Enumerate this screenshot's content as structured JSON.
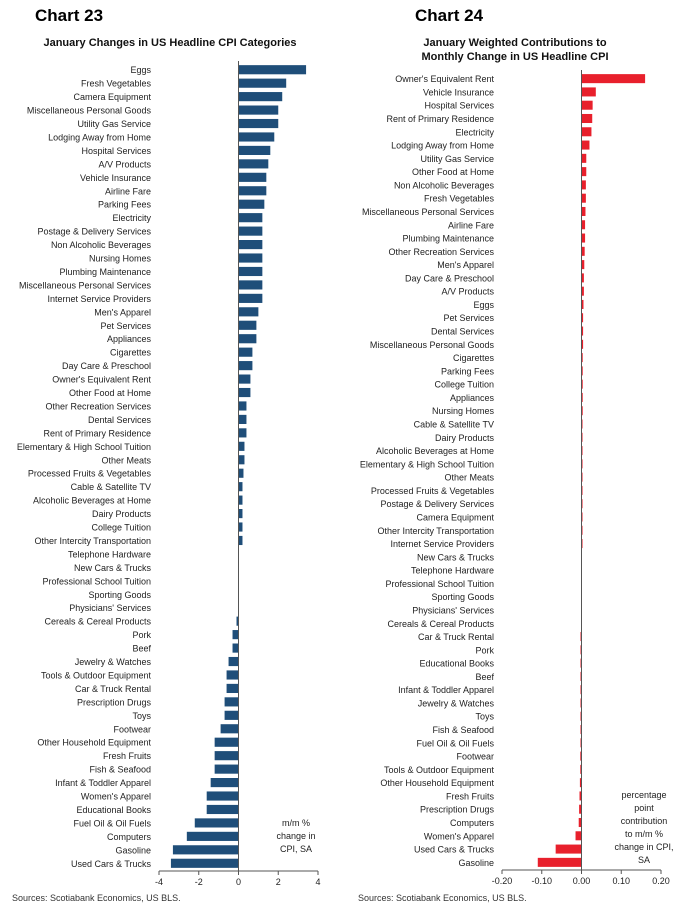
{
  "left": {
    "chart_number": "Chart 23",
    "title": "January Changes in US Headline CPI Categories",
    "source": "Sources: Scotiabank Economics, US BLS.",
    "annotation": [
      "m/m %",
      "change in",
      "CPI, SA"
    ],
    "color": "#1f4e79"
  },
  "right": {
    "chart_number": "Chart 24",
    "title_lines": [
      "January Weighted Contributions to",
      "Monthly Change in US Headline CPI"
    ],
    "source": "Sources: Scotiabank Economics, US BLS.",
    "annotation": [
      "percentage",
      "point",
      "contribution",
      "to m/m %",
      "change in CPI,",
      "SA"
    ],
    "color": "#e8202c"
  },
  "chart_data": [
    {
      "type": "bar",
      "orientation": "horizontal",
      "title": "January Changes in US Headline CPI Categories",
      "xlim": [
        -4,
        4
      ],
      "xticks": [
        "-4",
        "-2",
        "0",
        "2",
        "4"
      ],
      "categories": [
        "Eggs",
        "Fresh Vegetables",
        "Camera Equipment",
        "Miscellaneous Personal Goods",
        "Utility Gas Service",
        "Lodging Away from Home",
        "Hospital Services",
        "A/V Products",
        "Vehicle Insurance",
        "Airline Fare",
        "Parking Fees",
        "Electricity",
        "Postage & Delivery Services",
        "Non Alcoholic Beverages",
        "Nursing Homes",
        "Plumbing Maintenance",
        "Miscellaneous Personal Services",
        "Internet Service Providers",
        "Men's Apparel",
        "Pet Services",
        "Appliances",
        "Cigarettes",
        "Day Care & Preschool",
        "Owner's Equivalent Rent",
        "Other Food at Home",
        "Other Recreation Services",
        "Dental Services",
        "Rent of Primary Residence",
        "Elementary & High School Tuition",
        "Other Meats",
        "Processed Fruits & Vegetables",
        "Cable & Satellite TV",
        "Alcoholic Beverages at Home",
        "Dairy Products",
        "College Tuition",
        "Other Intercity Transportation",
        "Telephone Hardware",
        "New Cars & Trucks",
        "Professional School Tuition",
        "Sporting Goods",
        "Physicians' Services",
        "Cereals & Cereal Products",
        "Pork",
        "Beef",
        "Jewelry & Watches",
        "Tools & Outdoor Equipment",
        "Car & Truck Rental",
        "Prescription Drugs",
        "Toys",
        "Footwear",
        "Other Household Equipment",
        "Fresh Fruits",
        "Fish & Seafood",
        "Infant & Toddler Apparel",
        "Women's Apparel",
        "Educational Books",
        "Fuel Oil & Oil Fuels",
        "Computers",
        "Gasoline",
        "Used Cars & Trucks"
      ],
      "values": [
        3.4,
        2.4,
        2.2,
        2.0,
        2.0,
        1.8,
        1.6,
        1.5,
        1.4,
        1.4,
        1.3,
        1.2,
        1.2,
        1.2,
        1.2,
        1.2,
        1.2,
        1.2,
        1.0,
        0.9,
        0.9,
        0.7,
        0.7,
        0.6,
        0.6,
        0.4,
        0.4,
        0.4,
        0.3,
        0.3,
        0.25,
        0.2,
        0.2,
        0.2,
        0.2,
        0.2,
        0.0,
        0.0,
        0.0,
        0.0,
        0.0,
        -0.1,
        -0.3,
        -0.3,
        -0.5,
        -0.6,
        -0.6,
        -0.7,
        -0.7,
        -0.9,
        -1.2,
        -1.2,
        -1.2,
        -1.4,
        -1.6,
        -1.6,
        -2.2,
        -2.6,
        -3.3,
        -3.4
      ]
    },
    {
      "type": "bar",
      "orientation": "horizontal",
      "title": "January Weighted Contributions to Monthly Change in US Headline CPI",
      "xlim": [
        -0.2,
        0.2
      ],
      "xticks": [
        "-0.20",
        "-0.10",
        "0.00",
        "0.10",
        "0.20"
      ],
      "categories": [
        "Owner's Equivalent Rent",
        "Vehicle Insurance",
        "Hospital Services",
        "Rent of Primary Residence",
        "Electricity",
        "Lodging Away from Home",
        "Utility Gas Service",
        "Other Food at Home",
        "Non Alcoholic Beverages",
        "Fresh Vegetables",
        "Miscellaneous Personal Services",
        "Airline Fare",
        "Plumbing Maintenance",
        "Other Recreation Services",
        "Men's Apparel",
        "Day Care & Preschool",
        "A/V Products",
        "Eggs",
        "Pet Services",
        "Dental Services",
        "Miscellaneous Personal Goods",
        "Cigarettes",
        "Parking Fees",
        "College Tuition",
        "Appliances",
        "Nursing Homes",
        "Cable & Satellite TV",
        "Dairy Products",
        "Alcoholic Beverages at Home",
        "Elementary & High School Tuition",
        "Other Meats",
        "Processed Fruits & Vegetables",
        "Postage & Delivery Services",
        "Camera Equipment",
        "Other Intercity Transportation",
        "Internet Service Providers",
        "New Cars & Trucks",
        "Telephone Hardware",
        "Professional School Tuition",
        "Sporting Goods",
        "Physicians' Services",
        "Cereals & Cereal Products",
        "Car & Truck Rental",
        "Pork",
        "Educational Books",
        "Beef",
        "Infant & Toddler Apparel",
        "Jewelry & Watches",
        "Toys",
        "Fish & Seafood",
        "Fuel Oil & Oil Fuels",
        "Footwear",
        "Tools & Outdoor Equipment",
        "Other Household Equipment",
        "Fresh Fruits",
        "Prescription Drugs",
        "Computers",
        "Women's Apparel",
        "Used Cars & Trucks",
        "Gasoline"
      ],
      "values": [
        0.16,
        0.036,
        0.028,
        0.027,
        0.025,
        0.02,
        0.012,
        0.012,
        0.011,
        0.011,
        0.01,
        0.009,
        0.009,
        0.008,
        0.007,
        0.006,
        0.006,
        0.005,
        0.004,
        0.004,
        0.004,
        0.003,
        0.003,
        0.003,
        0.003,
        0.003,
        0.002,
        0.002,
        0.002,
        0.002,
        0.002,
        0.002,
        0.001,
        0.001,
        0.001,
        0.001,
        0.0,
        0.0,
        0.0,
        0.0,
        0.0,
        0.0,
        -0.001,
        -0.001,
        -0.001,
        -0.001,
        -0.002,
        -0.002,
        -0.002,
        -0.002,
        -0.002,
        -0.003,
        -0.003,
        -0.004,
        -0.005,
        -0.006,
        -0.007,
        -0.015,
        -0.065,
        -0.11
      ]
    }
  ]
}
